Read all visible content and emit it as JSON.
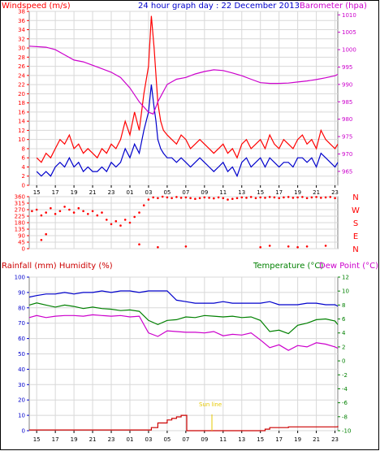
{
  "chart_data": [
    {
      "type": "line",
      "title": "24 hour graph day : 22 December 2013",
      "ylabel_left": "Windspeed (m/s)",
      "ylabel_right": "Barometer (hpa)",
      "x_ticks": [
        "15",
        "17",
        "19",
        "21",
        "23",
        "01",
        "03",
        "05",
        "07",
        "09",
        "11",
        "13",
        "15",
        "17",
        "19",
        "21",
        "23"
      ],
      "ylim_left": [
        0,
        38
      ],
      "yticks_left": [
        0,
        2,
        4,
        6,
        8,
        10,
        12,
        14,
        16,
        18,
        20,
        22,
        24,
        26,
        28,
        30,
        32,
        34,
        36,
        38
      ],
      "ylim_right": [
        961,
        1011
      ],
      "yticks_right": [
        965,
        970,
        975,
        980,
        985,
        990,
        995,
        1000,
        1005,
        1010
      ],
      "series": [
        {
          "name": "gust",
          "color": "#ff0000",
          "axis": "left",
          "x": [
            15,
            15.5,
            16,
            16.5,
            17,
            17.5,
            18,
            18.5,
            19,
            19.5,
            20,
            20.5,
            21,
            21.5,
            22,
            22.5,
            23,
            23.5,
            24,
            24.5,
            25,
            25.5,
            26,
            26.5,
            27,
            27.3,
            27.6,
            27.8,
            28,
            28.3,
            28.6,
            29,
            29.5,
            30,
            30.5,
            31,
            31.5,
            32,
            32.5,
            33,
            33.5,
            34,
            34.5,
            35,
            35.5,
            36,
            36.5,
            37,
            37.5,
            38,
            38.5,
            39,
            39.5,
            40,
            40.5,
            41,
            41.5,
            42,
            42.5,
            43,
            43.5,
            44,
            44.5,
            45,
            45.5,
            46,
            46.5,
            47,
            47.3
          ],
          "values": [
            6,
            5,
            7,
            6,
            8,
            10,
            9,
            11,
            8,
            9,
            7,
            8,
            7,
            6,
            8,
            7,
            9,
            8,
            10,
            14,
            11,
            16,
            12,
            20,
            26,
            37,
            30,
            24,
            18,
            14,
            12,
            11,
            10,
            9,
            11,
            10,
            8,
            9,
            10,
            9,
            8,
            7,
            8,
            9,
            7,
            8,
            6,
            9,
            10,
            8,
            9,
            10,
            8,
            11,
            9,
            8,
            10,
            9,
            8,
            10,
            11,
            9,
            10,
            8,
            12,
            10,
            9,
            8,
            9
          ]
        },
        {
          "name": "average",
          "color": "#0000cc",
          "axis": "left",
          "x": [
            15,
            15.5,
            16,
            16.5,
            17,
            17.5,
            18,
            18.5,
            19,
            19.5,
            20,
            20.5,
            21,
            21.5,
            22,
            22.5,
            23,
            23.5,
            24,
            24.5,
            25,
            25.5,
            26,
            26.5,
            27,
            27.3,
            27.6,
            27.8,
            28,
            28.3,
            28.6,
            29,
            29.5,
            30,
            30.5,
            31,
            31.5,
            32,
            32.5,
            33,
            33.5,
            34,
            34.5,
            35,
            35.5,
            36,
            36.5,
            37,
            37.5,
            38,
            38.5,
            39,
            39.5,
            40,
            40.5,
            41,
            41.5,
            42,
            42.5,
            43,
            43.5,
            44,
            44.5,
            45,
            45.5,
            46,
            46.5,
            47,
            47.3
          ],
          "values": [
            3,
            2,
            3,
            2,
            4,
            5,
            4,
            6,
            4,
            5,
            3,
            4,
            3,
            3,
            4,
            3,
            5,
            4,
            5,
            8,
            6,
            9,
            7,
            12,
            16,
            22,
            17,
            14,
            10,
            8,
            7,
            6,
            6,
            5,
            6,
            5,
            4,
            5,
            6,
            5,
            4,
            3,
            4,
            5,
            3,
            4,
            2,
            5,
            6,
            4,
            5,
            6,
            4,
            6,
            5,
            4,
            5,
            5,
            4,
            6,
            6,
            5,
            6,
            4,
            7,
            6,
            5,
            4,
            5
          ]
        },
        {
          "name": "barometer",
          "color": "#cc00cc",
          "axis": "right",
          "x": [
            14.2,
            16,
            17,
            18,
            19,
            20,
            21,
            22,
            23,
            24,
            25,
            26,
            27,
            27.5,
            28,
            29,
            30,
            31,
            32,
            33,
            34,
            35,
            36,
            37,
            38,
            39,
            40,
            41,
            42,
            43,
            44,
            45,
            46,
            47,
            47.3
          ],
          "values": [
            1001,
            1000.7,
            1000,
            998.5,
            997,
            996.5,
            995.5,
            994.5,
            993.5,
            992,
            989,
            985,
            982,
            981.5,
            985,
            990,
            991.5,
            992,
            993,
            993.7,
            994.2,
            994,
            993.3,
            992.5,
            991.5,
            990.5,
            990.3,
            990.3,
            990.4,
            990.7,
            991,
            991.4,
            991.9,
            992.5,
            992.9
          ]
        }
      ]
    },
    {
      "type": "scatter",
      "ylabel_right": [
        "N",
        "W",
        "S",
        "E",
        "N"
      ],
      "x_ticks": [
        "15",
        "17",
        "19",
        "21",
        "23",
        "01",
        "03",
        "05",
        "07",
        "09",
        "11",
        "13",
        "15",
        "17",
        "19",
        "21",
        "23"
      ],
      "ylim": [
        0,
        360
      ],
      "yticks": [
        0,
        45,
        90,
        135,
        180,
        225,
        270,
        315,
        360
      ],
      "series": [
        {
          "name": "wind direction",
          "color": "#ff0000",
          "x": [
            14.5,
            15,
            15.5,
            16,
            16.5,
            17,
            17.5,
            18,
            18.5,
            19,
            19.5,
            20,
            20.5,
            21,
            21.5,
            22,
            22.5,
            23,
            23.5,
            24,
            24.5,
            25,
            25.5,
            26,
            26.5,
            27,
            27.5,
            28,
            28.5,
            29,
            29.5,
            30,
            30.5,
            31,
            31.5,
            32,
            32.5,
            33,
            33.5,
            34,
            34.5,
            35,
            35.5,
            36,
            36.5,
            37,
            37.5,
            38,
            38.5,
            39,
            39.5,
            40,
            40.5,
            41,
            41.5,
            42,
            42.5,
            43,
            43.5,
            44,
            44.5,
            45,
            45.5,
            46,
            46.5,
            47,
            15.5,
            16,
            26,
            28,
            31,
            39,
            40,
            42,
            43,
            44,
            46
          ],
          "values": [
            260,
            270,
            230,
            250,
            280,
            240,
            260,
            290,
            270,
            250,
            280,
            260,
            240,
            260,
            230,
            250,
            200,
            170,
            190,
            160,
            200,
            180,
            220,
            250,
            300,
            340,
            355,
            350,
            360,
            355,
            350,
            358,
            352,
            355,
            350,
            345,
            350,
            355,
            352,
            348,
            355,
            350,
            340,
            345,
            350,
            355,
            352,
            358,
            350,
            355,
            352,
            358,
            355,
            350,
            355,
            358,
            352,
            355,
            358,
            350,
            355,
            358,
            352,
            355,
            358,
            350,
            60,
            100,
            30,
            10,
            15,
            10,
            20,
            15,
            10,
            15,
            20
          ]
        }
      ]
    },
    {
      "type": "line",
      "ylabel_left": "Rainfall (mm)  Humidity (%)",
      "ylabel_right_1": "Temperature (°C)",
      "ylabel_right_2": "Dew Point (°C)",
      "annotation": "Sun line",
      "x_ticks": [
        "15",
        "17",
        "19",
        "21",
        "23",
        "01",
        "03",
        "05",
        "07",
        "09",
        "11",
        "13",
        "15",
        "17",
        "19",
        "21",
        "23"
      ],
      "ylim_left": [
        0,
        100
      ],
      "yticks_left": [
        0,
        10,
        20,
        30,
        40,
        50,
        60,
        70,
        80,
        90,
        100
      ],
      "ylim_right": [
        -10,
        12
      ],
      "yticks_right": [
        -10,
        -8,
        -6,
        -4,
        -2,
        0,
        2,
        4,
        6,
        8,
        10,
        12
      ],
      "series": [
        {
          "name": "humidity",
          "color": "#0000cc",
          "axis": "left",
          "x": [
            14.2,
            15,
            16,
            17,
            18,
            19,
            20,
            21,
            22,
            23,
            24,
            25,
            26,
            27,
            28,
            29,
            30,
            31,
            32,
            33,
            34,
            35,
            36,
            37,
            38,
            39,
            40,
            41,
            42,
            43,
            44,
            45,
            46,
            47,
            47.3
          ],
          "values": [
            87,
            88,
            89,
            89,
            90,
            89,
            90,
            90,
            91,
            90,
            91,
            91,
            90,
            91,
            91,
            91,
            85,
            84,
            83,
            83,
            83,
            84,
            83,
            83,
            83,
            83,
            84,
            82,
            82,
            82,
            83,
            83,
            82,
            82,
            81
          ]
        },
        {
          "name": "temperature",
          "color": "#008000",
          "axis": "right",
          "x": [
            14.2,
            15,
            16,
            17,
            18,
            19,
            20,
            21,
            22,
            23,
            24,
            25,
            26,
            27,
            28,
            29,
            30,
            31,
            32,
            33,
            34,
            35,
            36,
            37,
            38,
            39,
            40,
            41,
            42,
            43,
            44,
            45,
            46,
            47,
            47.3
          ],
          "values": [
            8,
            8.3,
            8,
            7.7,
            8,
            7.8,
            7.5,
            7.7,
            7.5,
            7.4,
            7.2,
            7.3,
            7.1,
            5.8,
            5.2,
            5.8,
            5.9,
            6.3,
            6.2,
            6.5,
            6.4,
            6.3,
            6.4,
            6.2,
            6.3,
            5.8,
            4.2,
            4.4,
            3.9,
            5.1,
            5.4,
            5.9,
            6.0,
            5.7,
            5.2
          ]
        },
        {
          "name": "dew point",
          "color": "#cc00cc",
          "axis": "right",
          "x": [
            14.2,
            15,
            16,
            17,
            18,
            19,
            20,
            21,
            22,
            23,
            24,
            25,
            26,
            27,
            28,
            29,
            30,
            31,
            32,
            33,
            34,
            35,
            36,
            37,
            38,
            39,
            40,
            41,
            42,
            43,
            44,
            45,
            46,
            47,
            47.3
          ],
          "values": [
            6.2,
            6.5,
            6.2,
            6.4,
            6.5,
            6.5,
            6.4,
            6.6,
            6.5,
            6.4,
            6.5,
            6.3,
            6.4,
            4.0,
            3.5,
            4.3,
            4.2,
            4.1,
            4.1,
            4.0,
            4.2,
            3.6,
            3.8,
            3.7,
            4.0,
            3.0,
            1.9,
            2.3,
            1.5,
            2.2,
            2.0,
            2.6,
            2.4,
            2.0,
            1.8
          ]
        },
        {
          "name": "rainfall",
          "color": "#cc0000",
          "axis": "left",
          "x": [
            14.2,
            27,
            27.3,
            28,
            29,
            29.5,
            30,
            30.5,
            31,
            31.1,
            39,
            39.5,
            40,
            41,
            42,
            47.3
          ],
          "values": [
            0.5,
            0.5,
            2,
            5,
            7,
            8,
            9,
            10,
            10,
            0,
            0,
            1,
            2,
            2,
            2.5,
            3
          ]
        }
      ]
    }
  ]
}
